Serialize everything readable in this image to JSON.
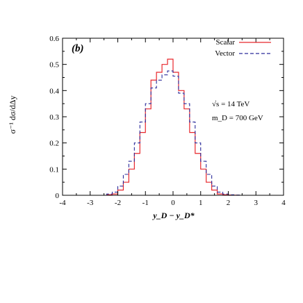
{
  "chart_data": {
    "type": "line",
    "panel_label": "(b)",
    "xlabel": "y_D − y_D*",
    "ylabel": "σ⁻¹ dσ/dΔy",
    "xlim": [
      -4,
      4
    ],
    "ylim": [
      0,
      0.6
    ],
    "x_ticks": [
      -4,
      -3,
      -2,
      -1,
      0,
      1,
      2,
      3,
      4
    ],
    "y_ticks": [
      0,
      0.1,
      0.2,
      0.3,
      0.4,
      0.5,
      0.6
    ],
    "bin_edges": [
      -2.4,
      -2.2,
      -2.0,
      -1.8,
      -1.6,
      -1.4,
      -1.2,
      -1.0,
      -0.8,
      -0.6,
      -0.4,
      -0.2,
      0.0,
      0.2,
      0.4,
      0.6,
      0.8,
      1.0,
      1.2,
      1.4,
      1.6,
      1.8,
      2.0,
      2.2,
      2.4
    ],
    "legend_position": "top-right",
    "grid": false,
    "series": [
      {
        "name": "Scalar",
        "color": "#e8262b",
        "dash": "solid",
        "values": [
          0.002,
          0.005,
          0.02,
          0.05,
          0.1,
          0.16,
          0.24,
          0.33,
          0.44,
          0.47,
          0.5,
          0.52,
          0.47,
          0.4,
          0.33,
          0.24,
          0.16,
          0.1,
          0.05,
          0.02,
          0.005,
          0.002,
          0.001,
          0.0005
        ]
      },
      {
        "name": "Vector",
        "color": "#2a2a9a",
        "dash": "dashed",
        "values": [
          0.005,
          0.012,
          0.035,
          0.08,
          0.13,
          0.2,
          0.28,
          0.35,
          0.41,
          0.44,
          0.46,
          0.475,
          0.455,
          0.39,
          0.35,
          0.28,
          0.2,
          0.13,
          0.08,
          0.035,
          0.012,
          0.005,
          0.002,
          0.001
        ]
      }
    ],
    "annotations": [
      "√s = 14 TeV",
      "m_D = 700 GeV"
    ]
  }
}
